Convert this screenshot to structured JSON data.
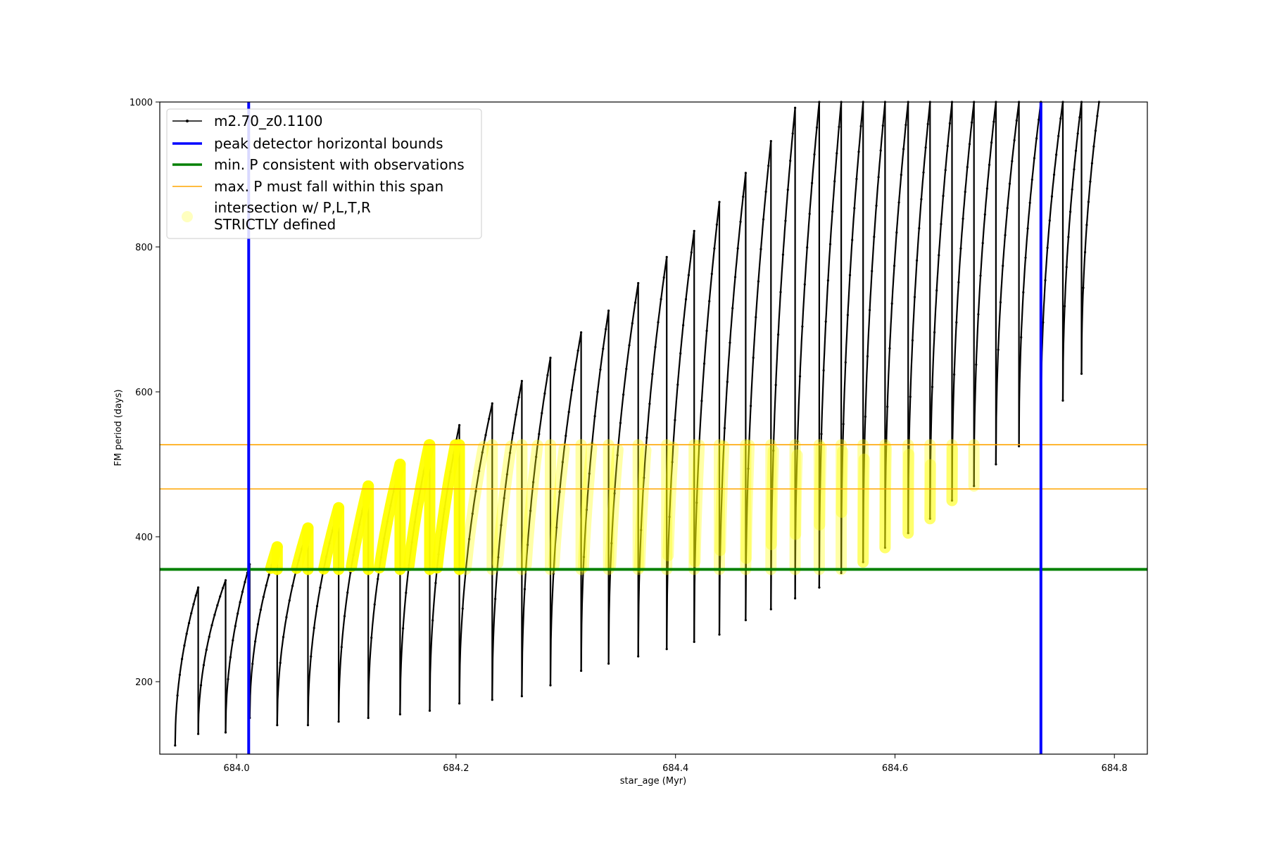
{
  "chart_data": {
    "type": "line",
    "title": "",
    "xlabel": "star_age (Myr)",
    "ylabel": "FM period (days)",
    "xlim": [
      683.93,
      684.83
    ],
    "ylim": [
      100,
      1000
    ],
    "xticks": [
      684.0,
      684.2,
      684.4,
      684.6,
      684.8
    ],
    "xtick_labels": [
      "684.0",
      "684.2",
      "684.4",
      "684.6",
      "684.8"
    ],
    "yticks": [
      200,
      400,
      600,
      800,
      1000
    ],
    "ytick_labels": [
      "200",
      "400",
      "600",
      "800",
      "1000"
    ],
    "grid": false,
    "legend_position": "upper-left",
    "legend": [
      "m2.70_z0.1100",
      "peak detector horizontal bounds",
      "min. P consistent with observations",
      "max. P must fall within this span",
      "intersection w/ P,L,T,R\nSTRICTLY defined"
    ],
    "colors": {
      "model": "#000000",
      "bounds": "#0000ff",
      "min_p": "#008000",
      "max_p_span": "#ffa500",
      "intersection": "#ffff00"
    },
    "vertical_bounds_x": [
      684.011,
      684.733
    ],
    "min_p_line_y": 355,
    "max_p_span_y": [
      466,
      527
    ],
    "cycles": [
      {
        "start": 683.944,
        "end": 683.965,
        "trough": 112,
        "peak": 330
      },
      {
        "start": 683.965,
        "end": 683.99,
        "trough": 128,
        "peak": 340
      },
      {
        "start": 683.99,
        "end": 684.012,
        "trough": 130,
        "peak": 362
      },
      {
        "start": 684.012,
        "end": 684.037,
        "trough": 150,
        "peak": 386
      },
      {
        "start": 684.037,
        "end": 684.065,
        "trough": 140,
        "peak": 412
      },
      {
        "start": 684.065,
        "end": 684.093,
        "trough": 140,
        "peak": 440
      },
      {
        "start": 684.093,
        "end": 684.12,
        "trough": 145,
        "peak": 470
      },
      {
        "start": 684.12,
        "end": 684.149,
        "trough": 150,
        "peak": 500
      },
      {
        "start": 684.149,
        "end": 684.176,
        "trough": 155,
        "peak": 530
      },
      {
        "start": 684.176,
        "end": 684.203,
        "trough": 160,
        "peak": 554
      },
      {
        "start": 684.203,
        "end": 684.233,
        "trough": 170,
        "peak": 584
      },
      {
        "start": 684.233,
        "end": 684.26,
        "trough": 175,
        "peak": 615
      },
      {
        "start": 684.26,
        "end": 684.286,
        "trough": 180,
        "peak": 647
      },
      {
        "start": 684.286,
        "end": 684.314,
        "trough": 195,
        "peak": 682
      },
      {
        "start": 684.314,
        "end": 684.339,
        "trough": 215,
        "peak": 712
      },
      {
        "start": 684.339,
        "end": 684.366,
        "trough": 225,
        "peak": 750
      },
      {
        "start": 684.366,
        "end": 684.392,
        "trough": 235,
        "peak": 786
      },
      {
        "start": 684.392,
        "end": 684.417,
        "trough": 245,
        "peak": 822
      },
      {
        "start": 684.417,
        "end": 684.44,
        "trough": 255,
        "peak": 862
      },
      {
        "start": 684.44,
        "end": 684.464,
        "trough": 265,
        "peak": 902
      },
      {
        "start": 684.464,
        "end": 684.487,
        "trough": 285,
        "peak": 946
      },
      {
        "start": 684.487,
        "end": 684.509,
        "trough": 300,
        "peak": 992
      },
      {
        "start": 684.509,
        "end": 684.531,
        "trough": 315,
        "peak": 1000
      },
      {
        "start": 684.531,
        "end": 684.551,
        "trough": 330,
        "peak": 1000
      },
      {
        "start": 684.551,
        "end": 684.571,
        "trough": 350,
        "peak": 1000
      },
      {
        "start": 684.571,
        "end": 684.591,
        "trough": 365,
        "peak": 1000
      },
      {
        "start": 684.591,
        "end": 684.612,
        "trough": 385,
        "peak": 1000
      },
      {
        "start": 684.612,
        "end": 684.632,
        "trough": 405,
        "peak": 1000
      },
      {
        "start": 684.632,
        "end": 684.652,
        "trough": 425,
        "peak": 1000
      },
      {
        "start": 684.652,
        "end": 684.672,
        "trough": 450,
        "peak": 1000
      },
      {
        "start": 684.672,
        "end": 684.692,
        "trough": 470,
        "peak": 1000
      },
      {
        "start": 684.692,
        "end": 684.713,
        "trough": 500,
        "peak": 1000
      },
      {
        "start": 684.713,
        "end": 684.733,
        "trough": 525,
        "peak": 1000
      },
      {
        "start": 684.733,
        "end": 684.753,
        "trough": 555,
        "peak": 1000
      },
      {
        "start": 684.753,
        "end": 684.77,
        "trough": 588,
        "peak": 1000
      },
      {
        "start": 684.77,
        "end": 684.786,
        "trough": 625,
        "peak": 1000
      }
    ]
  }
}
